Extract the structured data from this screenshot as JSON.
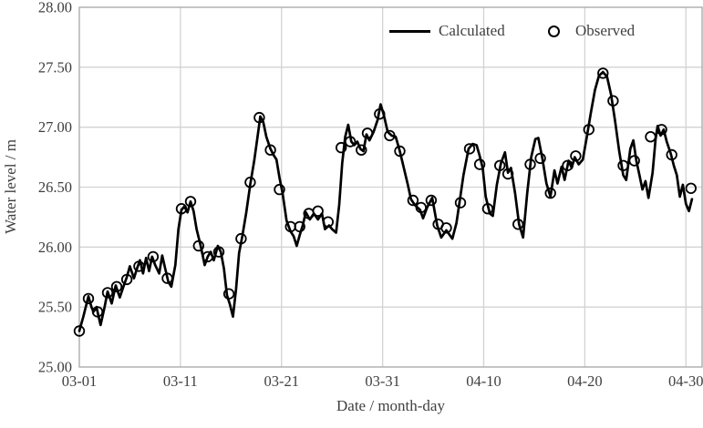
{
  "chart_data": {
    "type": "line",
    "title": "",
    "xlabel": "Date / month-day",
    "ylabel": "Water level / m",
    "x_unit": "days since 03-01",
    "xlim": [
      0,
      61.6
    ],
    "ylim": [
      25.0,
      28.0
    ],
    "grid": true,
    "legend_position": "inside-top-right",
    "x_ticks": [
      {
        "day": 0,
        "label": "03-01"
      },
      {
        "day": 10,
        "label": "03-11"
      },
      {
        "day": 20,
        "label": "03-21"
      },
      {
        "day": 30,
        "label": "03-31"
      },
      {
        "day": 40,
        "label": "04-10"
      },
      {
        "day": 50,
        "label": "04-20"
      },
      {
        "day": 60,
        "label": "04-30"
      }
    ],
    "y_ticks": [
      {
        "value": 25.0,
        "label": "25.00"
      },
      {
        "value": 25.5,
        "label": "25.50"
      },
      {
        "value": 26.0,
        "label": "26.00"
      },
      {
        "value": 26.5,
        "label": "26.50"
      },
      {
        "value": 27.0,
        "label": "27.00"
      },
      {
        "value": 27.5,
        "label": "27.50"
      },
      {
        "value": 28.0,
        "label": "28.00"
      }
    ],
    "series": [
      {
        "name": "Calculated",
        "style": "solid-line",
        "color": "#000000",
        "line_width": 2.7,
        "points": [
          [
            0.0,
            25.3
          ],
          [
            0.4,
            25.42
          ],
          [
            0.9,
            25.59
          ],
          [
            1.2,
            25.5
          ],
          [
            1.4,
            25.46
          ],
          [
            1.7,
            25.5
          ],
          [
            2.1,
            25.35
          ],
          [
            2.5,
            25.5
          ],
          [
            2.8,
            25.63
          ],
          [
            3.2,
            25.53
          ],
          [
            3.6,
            25.68
          ],
          [
            4.0,
            25.58
          ],
          [
            4.4,
            25.68
          ],
          [
            4.7,
            25.75
          ],
          [
            5.0,
            25.84
          ],
          [
            5.4,
            25.74
          ],
          [
            5.7,
            25.82
          ],
          [
            6.0,
            25.89
          ],
          [
            6.3,
            25.78
          ],
          [
            6.6,
            25.91
          ],
          [
            6.9,
            25.8
          ],
          [
            7.2,
            25.92
          ],
          [
            7.5,
            25.85
          ],
          [
            7.9,
            25.78
          ],
          [
            8.2,
            25.93
          ],
          [
            8.5,
            25.82
          ],
          [
            8.8,
            25.71
          ],
          [
            9.1,
            25.67
          ],
          [
            9.5,
            25.85
          ],
          [
            9.8,
            26.15
          ],
          [
            10.1,
            26.31
          ],
          [
            10.4,
            26.34
          ],
          [
            10.7,
            26.29
          ],
          [
            11.0,
            26.38
          ],
          [
            11.3,
            26.3
          ],
          [
            11.6,
            26.15
          ],
          [
            12.0,
            26.01
          ],
          [
            12.4,
            25.85
          ],
          [
            12.7,
            25.92
          ],
          [
            13.0,
            25.96
          ],
          [
            13.3,
            25.89
          ],
          [
            13.7,
            26.01
          ],
          [
            14.0,
            25.96
          ],
          [
            14.3,
            25.82
          ],
          [
            14.6,
            25.6
          ],
          [
            14.9,
            25.52
          ],
          [
            15.2,
            25.42
          ],
          [
            15.5,
            25.65
          ],
          [
            15.8,
            25.95
          ],
          [
            16.1,
            26.08
          ],
          [
            16.5,
            26.28
          ],
          [
            16.9,
            26.52
          ],
          [
            17.3,
            26.72
          ],
          [
            17.6,
            26.9
          ],
          [
            17.9,
            27.09
          ],
          [
            18.2,
            27.04
          ],
          [
            18.5,
            26.92
          ],
          [
            18.9,
            26.82
          ],
          [
            19.2,
            26.77
          ],
          [
            19.5,
            26.73
          ],
          [
            19.8,
            26.58
          ],
          [
            20.1,
            26.45
          ],
          [
            20.5,
            26.22
          ],
          [
            20.9,
            26.13
          ],
          [
            21.2,
            26.09
          ],
          [
            21.5,
            26.01
          ],
          [
            21.8,
            26.1
          ],
          [
            22.1,
            26.18
          ],
          [
            22.4,
            26.29
          ],
          [
            22.8,
            26.23
          ],
          [
            23.2,
            26.28
          ],
          [
            23.6,
            26.23
          ],
          [
            24.0,
            26.28
          ],
          [
            24.3,
            26.15
          ],
          [
            24.7,
            26.18
          ],
          [
            25.0,
            26.15
          ],
          [
            25.4,
            26.12
          ],
          [
            25.7,
            26.35
          ],
          [
            26.0,
            26.7
          ],
          [
            26.3,
            26.92
          ],
          [
            26.6,
            27.02
          ],
          [
            26.9,
            26.88
          ],
          [
            27.2,
            26.85
          ],
          [
            27.5,
            26.88
          ],
          [
            27.8,
            26.82
          ],
          [
            28.1,
            26.8
          ],
          [
            28.4,
            26.94
          ],
          [
            28.7,
            26.89
          ],
          [
            29.1,
            26.96
          ],
          [
            29.5,
            27.06
          ],
          [
            29.8,
            27.19
          ],
          [
            30.1,
            27.11
          ],
          [
            30.5,
            26.96
          ],
          [
            30.9,
            26.93
          ],
          [
            31.3,
            26.92
          ],
          [
            31.7,
            26.8
          ],
          [
            32.1,
            26.66
          ],
          [
            32.5,
            26.52
          ],
          [
            32.8,
            26.4
          ],
          [
            33.2,
            26.35
          ],
          [
            33.7,
            26.31
          ],
          [
            34.0,
            26.24
          ],
          [
            34.4,
            26.33
          ],
          [
            34.9,
            26.41
          ],
          [
            35.4,
            26.18
          ],
          [
            35.8,
            26.08
          ],
          [
            36.3,
            26.14
          ],
          [
            36.9,
            26.07
          ],
          [
            37.3,
            26.2
          ],
          [
            37.6,
            26.37
          ],
          [
            38.0,
            26.6
          ],
          [
            38.5,
            26.82
          ],
          [
            38.9,
            26.86
          ],
          [
            39.3,
            26.85
          ],
          [
            39.6,
            26.76
          ],
          [
            39.9,
            26.66
          ],
          [
            40.2,
            26.42
          ],
          [
            40.6,
            26.28
          ],
          [
            40.9,
            26.26
          ],
          [
            41.3,
            26.52
          ],
          [
            41.7,
            26.7
          ],
          [
            42.1,
            26.79
          ],
          [
            42.4,
            26.62
          ],
          [
            42.7,
            26.66
          ],
          [
            43.1,
            26.45
          ],
          [
            43.5,
            26.19
          ],
          [
            43.9,
            26.08
          ],
          [
            44.3,
            26.45
          ],
          [
            44.7,
            26.75
          ],
          [
            45.1,
            26.9
          ],
          [
            45.4,
            26.91
          ],
          [
            45.8,
            26.74
          ],
          [
            46.2,
            26.53
          ],
          [
            46.6,
            26.42
          ],
          [
            47.0,
            26.64
          ],
          [
            47.3,
            26.53
          ],
          [
            47.7,
            26.67
          ],
          [
            48.0,
            26.56
          ],
          [
            48.4,
            26.72
          ],
          [
            48.7,
            26.66
          ],
          [
            49.0,
            26.75
          ],
          [
            49.4,
            26.69
          ],
          [
            49.8,
            26.73
          ],
          [
            50.2,
            26.92
          ],
          [
            50.6,
            27.12
          ],
          [
            51.0,
            27.31
          ],
          [
            51.4,
            27.43
          ],
          [
            51.8,
            27.46
          ],
          [
            52.2,
            27.42
          ],
          [
            52.6,
            27.27
          ],
          [
            53.0,
            27.05
          ],
          [
            53.4,
            26.8
          ],
          [
            53.8,
            26.6
          ],
          [
            54.1,
            26.56
          ],
          [
            54.5,
            26.82
          ],
          [
            54.8,
            26.89
          ],
          [
            55.1,
            26.72
          ],
          [
            55.4,
            26.6
          ],
          [
            55.7,
            26.48
          ],
          [
            56.0,
            26.55
          ],
          [
            56.3,
            26.41
          ],
          [
            56.7,
            26.62
          ],
          [
            57.0,
            26.9
          ],
          [
            57.2,
            27.01
          ],
          [
            57.5,
            26.93
          ],
          [
            57.8,
            26.98
          ],
          [
            58.1,
            26.88
          ],
          [
            58.5,
            26.78
          ],
          [
            58.8,
            26.68
          ],
          [
            59.1,
            26.6
          ],
          [
            59.4,
            26.42
          ],
          [
            59.7,
            26.52
          ],
          [
            60.0,
            26.36
          ],
          [
            60.3,
            26.3
          ],
          [
            60.6,
            26.4
          ]
        ]
      },
      {
        "name": "Observed",
        "style": "open-circle-markers",
        "color": "#000000",
        "marker_radius": 5.3,
        "marker_stroke_width": 1.8,
        "points": [
          [
            0.0,
            25.3
          ],
          [
            0.9,
            25.57
          ],
          [
            1.8,
            25.46
          ],
          [
            2.8,
            25.62
          ],
          [
            3.7,
            25.67
          ],
          [
            4.7,
            25.73
          ],
          [
            5.9,
            25.84
          ],
          [
            7.3,
            25.92
          ],
          [
            8.7,
            25.74
          ],
          [
            10.1,
            26.32
          ],
          [
            11.0,
            26.38
          ],
          [
            11.8,
            26.01
          ],
          [
            12.7,
            25.92
          ],
          [
            13.8,
            25.96
          ],
          [
            14.8,
            25.61
          ],
          [
            16.0,
            26.07
          ],
          [
            16.9,
            26.54
          ],
          [
            17.8,
            27.08
          ],
          [
            18.9,
            26.81
          ],
          [
            19.8,
            26.48
          ],
          [
            20.9,
            26.17
          ],
          [
            21.8,
            26.17
          ],
          [
            22.7,
            26.28
          ],
          [
            23.6,
            26.3
          ],
          [
            24.6,
            26.21
          ],
          [
            25.9,
            26.83
          ],
          [
            26.8,
            26.88
          ],
          [
            27.9,
            26.81
          ],
          [
            28.5,
            26.95
          ],
          [
            29.7,
            27.11
          ],
          [
            30.7,
            26.93
          ],
          [
            31.7,
            26.8
          ],
          [
            33.0,
            26.39
          ],
          [
            33.8,
            26.33
          ],
          [
            34.8,
            26.39
          ],
          [
            35.5,
            26.19
          ],
          [
            36.3,
            26.16
          ],
          [
            37.7,
            26.37
          ],
          [
            38.6,
            26.82
          ],
          [
            39.6,
            26.69
          ],
          [
            40.4,
            26.32
          ],
          [
            41.6,
            26.68
          ],
          [
            42.4,
            26.61
          ],
          [
            43.4,
            26.19
          ],
          [
            44.6,
            26.69
          ],
          [
            45.6,
            26.74
          ],
          [
            46.6,
            26.45
          ],
          [
            48.3,
            26.68
          ],
          [
            49.1,
            26.76
          ],
          [
            50.4,
            26.98
          ],
          [
            51.8,
            27.45
          ],
          [
            52.8,
            27.22
          ],
          [
            53.8,
            26.68
          ],
          [
            54.9,
            26.72
          ],
          [
            56.5,
            26.92
          ],
          [
            57.6,
            26.98
          ],
          [
            58.6,
            26.77
          ],
          [
            60.5,
            26.49
          ]
        ]
      }
    ],
    "colors": {
      "gridline": "#d3d3d3",
      "plot_border": "#a6a6a6",
      "tick_text": "#3f3f3f",
      "series": "#000000",
      "background": "#ffffff"
    }
  }
}
